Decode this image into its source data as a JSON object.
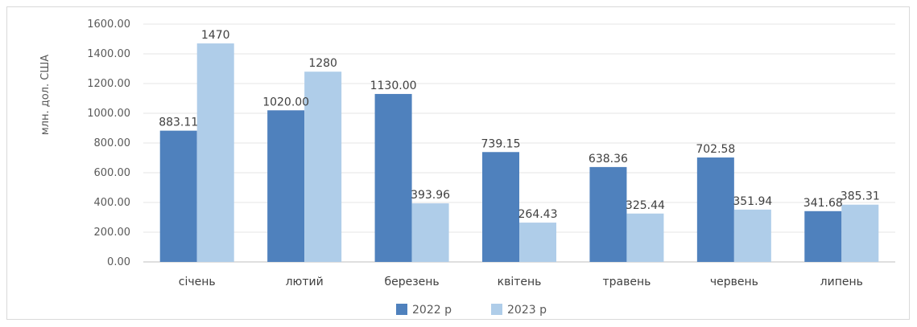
{
  "chart_data": {
    "type": "bar",
    "title": "",
    "xlabel": "",
    "ylabel": "млн. дол. США",
    "ylim": [
      0,
      1600
    ],
    "yticks": [
      "0.00",
      "200.00",
      "400.00",
      "600.00",
      "800.00",
      "1000.00",
      "1200.00",
      "1400.00",
      "1600.00"
    ],
    "categories": [
      "січень",
      "лютий",
      "березень",
      "квітень",
      "травень",
      "червень",
      "липень"
    ],
    "series": [
      {
        "name": "2022 р",
        "color": "#4f81bd",
        "values": [
          883.11,
          1020.0,
          1130.0,
          739.15,
          638.36,
          702.58,
          341.68
        ],
        "labels": [
          "883.11",
          "1020.00",
          "1130.00",
          "739.15",
          "638.36",
          "702.58",
          "341.68"
        ]
      },
      {
        "name": "2023 р",
        "color": "#afcde9",
        "values": [
          1470,
          1280,
          393.96,
          264.43,
          325.44,
          351.94,
          385.31
        ],
        "labels": [
          "1470",
          "1280",
          "393.96",
          "264.43",
          "325.44",
          "351.94",
          "385.31"
        ]
      }
    ],
    "grid": true,
    "legend": "bottom-center"
  }
}
